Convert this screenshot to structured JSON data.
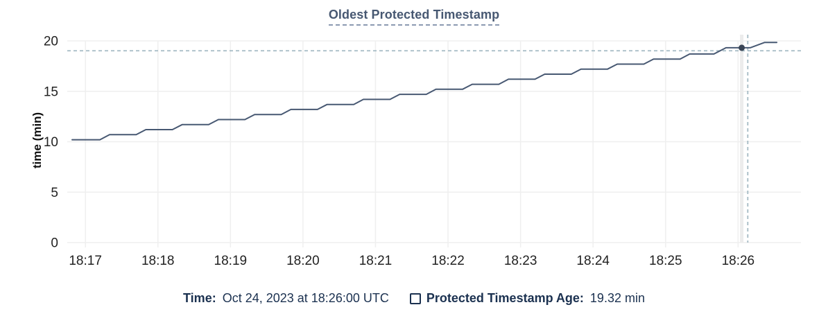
{
  "header": {
    "title": "Oldest Protected Timestamp"
  },
  "footer": {
    "time_label": "Time:",
    "time_value": "Oct 24, 2023 at 18:26:00 UTC",
    "series_label": "Protected Timestamp Age:",
    "series_value": "19.32 min"
  },
  "colors": {
    "line": "#475872",
    "dot": "#394455",
    "grid": "#efefef",
    "tick": "#e4e4e4",
    "crosshair": "#a4bac4",
    "cursor_band": "#ececec",
    "axis_text": "#222222",
    "title_text": "#475872",
    "footer_text": "#1b3150"
  },
  "chart_data": {
    "type": "line",
    "title": "Oldest Protected Timestamp",
    "xlabel": "",
    "ylabel": "time (min)",
    "ylim": [
      0,
      20
    ],
    "y_ticks": [
      0,
      5,
      10,
      15,
      20
    ],
    "x_axis_kind": "time (HH:MM UTC, seconds after 18:00)",
    "xlim_seconds": [
      1005,
      1612
    ],
    "x_ticks": {
      "seconds": [
        1020,
        1080,
        1140,
        1200,
        1260,
        1320,
        1380,
        1440,
        1500,
        1560
      ],
      "labels": [
        "18:17",
        "18:18",
        "18:19",
        "18:20",
        "18:21",
        "18:22",
        "18:23",
        "18:24",
        "18:25",
        "18:26"
      ]
    },
    "grid": true,
    "legend_position": "bottom",
    "series": [
      {
        "name": "Protected Timestamp Age",
        "unit": "min",
        "points": [
          [
            1009,
            10.2
          ],
          [
            1032,
            10.2
          ],
          [
            1040,
            10.7
          ],
          [
            1062,
            10.7
          ],
          [
            1070,
            11.2
          ],
          [
            1092,
            11.2
          ],
          [
            1100,
            11.7
          ],
          [
            1122,
            11.7
          ],
          [
            1130,
            12.2
          ],
          [
            1152,
            12.2
          ],
          [
            1160,
            12.7
          ],
          [
            1182,
            12.7
          ],
          [
            1190,
            13.2
          ],
          [
            1212,
            13.2
          ],
          [
            1220,
            13.7
          ],
          [
            1242,
            13.7
          ],
          [
            1250,
            14.2
          ],
          [
            1272,
            14.2
          ],
          [
            1280,
            14.7
          ],
          [
            1302,
            14.7
          ],
          [
            1310,
            15.2
          ],
          [
            1332,
            15.2
          ],
          [
            1340,
            15.7
          ],
          [
            1362,
            15.7
          ],
          [
            1370,
            16.2
          ],
          [
            1392,
            16.2
          ],
          [
            1400,
            16.7
          ],
          [
            1422,
            16.7
          ],
          [
            1430,
            17.2
          ],
          [
            1452,
            17.2
          ],
          [
            1460,
            17.7
          ],
          [
            1482,
            17.7
          ],
          [
            1490,
            18.2
          ],
          [
            1512,
            18.2
          ],
          [
            1520,
            18.7
          ],
          [
            1540,
            18.7
          ],
          [
            1550,
            19.32
          ],
          [
            1570,
            19.32
          ],
          [
            1582,
            19.85
          ],
          [
            1592,
            19.85
          ]
        ]
      }
    ],
    "cursor": {
      "hover_time_label": "18:26:00",
      "snap_t": 1563,
      "snap_value": 19.32,
      "mouse_t": 1568,
      "mouse_value": 19.02
    }
  }
}
